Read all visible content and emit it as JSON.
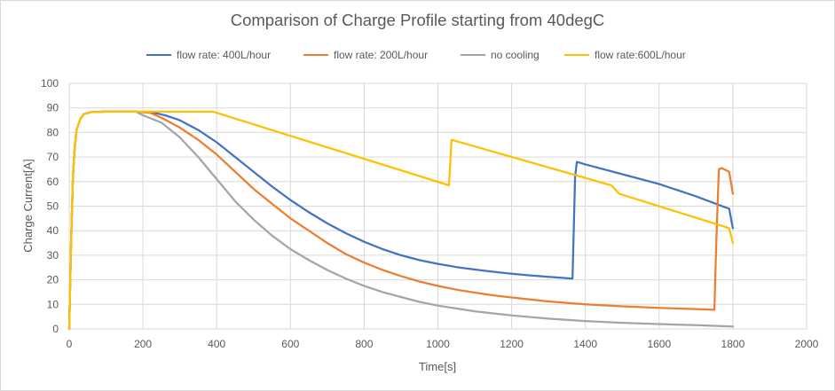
{
  "chart_data": {
    "type": "line",
    "title": "Comparison of Charge Profile starting from 40degC",
    "xlabel": "Time[s]",
    "ylabel": "Charge Current[A]",
    "xlim": [
      0,
      2000
    ],
    "ylim": [
      0,
      100
    ],
    "x_ticks": [
      0,
      200,
      400,
      600,
      800,
      1000,
      1200,
      1400,
      1600,
      1800,
      2000
    ],
    "y_ticks": [
      0,
      10,
      20,
      30,
      40,
      50,
      60,
      70,
      80,
      90,
      100
    ],
    "grid": true,
    "legend_position": "top",
    "series": [
      {
        "name": "flow rate: 400L/hour",
        "color": "#4472c4",
        "points": [
          [
            0,
            0
          ],
          [
            5,
            35
          ],
          [
            10,
            62
          ],
          [
            15,
            74
          ],
          [
            20,
            81
          ],
          [
            30,
            85.5
          ],
          [
            40,
            87.5
          ],
          [
            60,
            88.3
          ],
          [
            100,
            88.5
          ],
          [
            180,
            88.5
          ],
          [
            230,
            88
          ],
          [
            260,
            87
          ],
          [
            300,
            85
          ],
          [
            350,
            81
          ],
          [
            400,
            76
          ],
          [
            450,
            70
          ],
          [
            500,
            64
          ],
          [
            550,
            58
          ],
          [
            600,
            52.5
          ],
          [
            650,
            47.5
          ],
          [
            700,
            43
          ],
          [
            750,
            39
          ],
          [
            800,
            35.5
          ],
          [
            850,
            32.5
          ],
          [
            900,
            30
          ],
          [
            950,
            28
          ],
          [
            1000,
            26.5
          ],
          [
            1050,
            25.2
          ],
          [
            1100,
            24.2
          ],
          [
            1150,
            23.3
          ],
          [
            1200,
            22.5
          ],
          [
            1250,
            21.8
          ],
          [
            1300,
            21.2
          ],
          [
            1365,
            20.5
          ],
          [
            1372,
            62
          ],
          [
            1377,
            68
          ],
          [
            1400,
            67
          ],
          [
            1500,
            63
          ],
          [
            1600,
            59
          ],
          [
            1700,
            54
          ],
          [
            1780,
            49.5
          ],
          [
            1790,
            49
          ],
          [
            1800,
            41
          ]
        ]
      },
      {
        "name": "flow rate: 200L/hour",
        "color": "#ed7d31",
        "points": [
          [
            0,
            0
          ],
          [
            5,
            35
          ],
          [
            10,
            62
          ],
          [
            15,
            74
          ],
          [
            20,
            81
          ],
          [
            30,
            85.5
          ],
          [
            40,
            87.5
          ],
          [
            60,
            88.3
          ],
          [
            100,
            88.5
          ],
          [
            180,
            88.5
          ],
          [
            220,
            88
          ],
          [
            250,
            86
          ],
          [
            300,
            82
          ],
          [
            350,
            77
          ],
          [
            400,
            71
          ],
          [
            450,
            64
          ],
          [
            500,
            57
          ],
          [
            550,
            51
          ],
          [
            600,
            45
          ],
          [
            650,
            40
          ],
          [
            700,
            35
          ],
          [
            750,
            30.5
          ],
          [
            800,
            27
          ],
          [
            850,
            24
          ],
          [
            900,
            21.5
          ],
          [
            950,
            19.3
          ],
          [
            1000,
            17.5
          ],
          [
            1050,
            16
          ],
          [
            1100,
            14.8
          ],
          [
            1150,
            13.7
          ],
          [
            1200,
            12.8
          ],
          [
            1300,
            11.2
          ],
          [
            1400,
            10
          ],
          [
            1500,
            9.2
          ],
          [
            1600,
            8.6
          ],
          [
            1700,
            8.1
          ],
          [
            1750,
            7.8
          ],
          [
            1755,
            35
          ],
          [
            1762,
            65
          ],
          [
            1770,
            65.5
          ],
          [
            1790,
            64
          ],
          [
            1800,
            55
          ]
        ]
      },
      {
        "name": "no cooling",
        "color": "#a5a5a5",
        "points": [
          [
            0,
            0
          ],
          [
            5,
            35
          ],
          [
            10,
            62
          ],
          [
            15,
            74
          ],
          [
            20,
            81
          ],
          [
            30,
            85.5
          ],
          [
            40,
            87.5
          ],
          [
            60,
            88.3
          ],
          [
            100,
            88.5
          ],
          [
            180,
            88.5
          ],
          [
            200,
            87
          ],
          [
            250,
            84
          ],
          [
            300,
            78
          ],
          [
            350,
            70
          ],
          [
            400,
            61
          ],
          [
            450,
            52
          ],
          [
            500,
            44.5
          ],
          [
            550,
            38
          ],
          [
            600,
            32.5
          ],
          [
            650,
            28
          ],
          [
            700,
            24
          ],
          [
            750,
            20.5
          ],
          [
            800,
            17.5
          ],
          [
            850,
            15
          ],
          [
            900,
            13
          ],
          [
            950,
            11
          ],
          [
            1000,
            9.5
          ],
          [
            1100,
            7.2
          ],
          [
            1200,
            5.5
          ],
          [
            1300,
            4.2
          ],
          [
            1400,
            3.2
          ],
          [
            1500,
            2.5
          ],
          [
            1600,
            2
          ],
          [
            1700,
            1.5
          ],
          [
            1800,
            1
          ]
        ]
      },
      {
        "name": "flow rate:600L/hour",
        "color": "#ffc000",
        "points": [
          [
            0,
            0
          ],
          [
            5,
            35
          ],
          [
            10,
            62
          ],
          [
            15,
            74
          ],
          [
            20,
            81
          ],
          [
            30,
            85.5
          ],
          [
            40,
            87.5
          ],
          [
            60,
            88.3
          ],
          [
            100,
            88.5
          ],
          [
            390,
            88.5
          ],
          [
            1030,
            58.5
          ],
          [
            1037,
            77
          ],
          [
            1470,
            58.5
          ],
          [
            1480,
            57
          ],
          [
            1492,
            55
          ],
          [
            1780,
            41.5
          ],
          [
            1790,
            41
          ],
          [
            1800,
            35
          ]
        ]
      }
    ]
  }
}
